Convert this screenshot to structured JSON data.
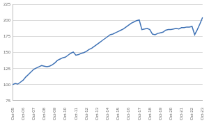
{
  "chart_data": {
    "type": "line",
    "color": "#3f72b5",
    "grid": true,
    "categories": [
      "Oct-05",
      null,
      null,
      null,
      "Oct-06",
      null,
      null,
      null,
      "Oct-07",
      null,
      null,
      null,
      "Oct-08",
      null,
      null,
      null,
      "Oct-09",
      null,
      null,
      null,
      "Oct-10",
      null,
      null,
      null,
      "Oct-11",
      null,
      null,
      null,
      "Oct-12",
      null,
      null,
      null,
      "Oct-13",
      null,
      null,
      null,
      "Oct-14",
      null,
      null,
      null,
      "Oct-15",
      null,
      null,
      null,
      "Oct-16",
      null,
      null,
      null,
      "Oct-17",
      null,
      null,
      null,
      "Oct-18",
      null,
      null,
      null,
      "Oct-19",
      null,
      null,
      null,
      "Oct-20",
      null,
      null,
      null,
      "Oct-21",
      null,
      null,
      null,
      "Oct-22",
      null,
      null,
      null,
      "Oct-23"
    ],
    "values": [
      100,
      102,
      101,
      104,
      107,
      112,
      116,
      120,
      124,
      126,
      128,
      130,
      129,
      128,
      129,
      131,
      134,
      138,
      140,
      142,
      143,
      146,
      149,
      151,
      146,
      147,
      149,
      150,
      152,
      155,
      157,
      160,
      163,
      166,
      169,
      172,
      175,
      178,
      179,
      181,
      183,
      185,
      187,
      190,
      193,
      196,
      198,
      200,
      201,
      186,
      187,
      188,
      186,
      179,
      178,
      180,
      181,
      182,
      185,
      186,
      186,
      187,
      188,
      187,
      189,
      189,
      190,
      190,
      191,
      178,
      186,
      195,
      205
    ],
    "ylim": [
      75,
      225
    ],
    "yticks": [
      75,
      100,
      125,
      150,
      175,
      200,
      225
    ]
  }
}
